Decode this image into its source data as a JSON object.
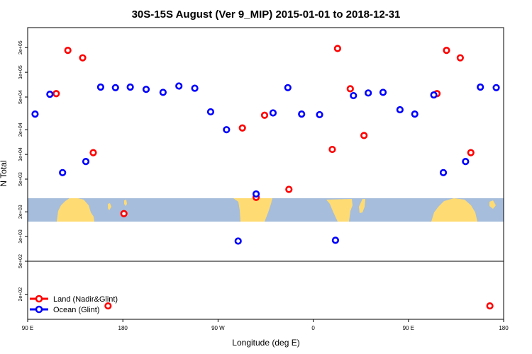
{
  "chart_data": {
    "type": "scatter",
    "title": "30S-15S August (Ver 9_MIP)   2015-01-01 to 2018-12-31",
    "xlabel": "Longitude (deg E)",
    "ylabel": "N Total",
    "xlim": [
      90,
      540
    ],
    "ylim": [
      100,
      350000
    ],
    "yscale": "log",
    "x_ticks": [
      {
        "value": 90,
        "label": "90 E"
      },
      {
        "value": 180,
        "label": "180"
      },
      {
        "value": 270,
        "label": "90 W"
      },
      {
        "value": 360,
        "label": "0"
      },
      {
        "value": 450,
        "label": "90 E"
      },
      {
        "value": 540,
        "label": "180"
      }
    ],
    "y_ticks": [
      {
        "value": 200,
        "label": "2e+02"
      },
      {
        "value": 500,
        "label": "5e+02"
      },
      {
        "value": 1000,
        "label": "1e+03"
      },
      {
        "value": 2000,
        "label": "2e+03"
      },
      {
        "value": 5000,
        "label": "5e+03"
      },
      {
        "value": 10000,
        "label": "1e+04"
      },
      {
        "value": 20000,
        "label": "2e+04"
      },
      {
        "value": 50000,
        "label": "5e+04"
      },
      {
        "value": 100000,
        "label": "1e+05"
      },
      {
        "value": 200000,
        "label": "2e+05"
      }
    ],
    "legend": "bottom-left",
    "series": [
      {
        "name": "Land (Nadir&Glint)",
        "color": "#ff0000",
        "points": [
          {
            "x": 117,
            "y": 55000
          },
          {
            "x": 128,
            "y": 185000
          },
          {
            "x": 142,
            "y": 150000
          },
          {
            "x": 152,
            "y": 10500
          },
          {
            "x": 181,
            "y": 1900
          },
          {
            "x": 293,
            "y": 21000
          },
          {
            "x": 306,
            "y": 3000
          },
          {
            "x": 314,
            "y": 30000
          },
          {
            "x": 337,
            "y": 3750
          },
          {
            "x": 378,
            "y": 11500
          },
          {
            "x": 383,
            "y": 195000
          },
          {
            "x": 395,
            "y": 63000
          },
          {
            "x": 408,
            "y": 17000
          },
          {
            "x": 477,
            "y": 55000
          },
          {
            "x": 486,
            "y": 185000
          },
          {
            "x": 499,
            "y": 150000
          },
          {
            "x": 509,
            "y": 10500
          },
          {
            "x": 166,
            "y": 145
          },
          {
            "x": 527,
            "y": 145
          }
        ]
      },
      {
        "name": "Ocean (Glint)",
        "color": "#0000ff",
        "points": [
          {
            "x": 97,
            "y": 31000
          },
          {
            "x": 111,
            "y": 54000
          },
          {
            "x": 123,
            "y": 6000
          },
          {
            "x": 145,
            "y": 8200
          },
          {
            "x": 159,
            "y": 66000
          },
          {
            "x": 173,
            "y": 65000
          },
          {
            "x": 187,
            "y": 66000
          },
          {
            "x": 202,
            "y": 62000
          },
          {
            "x": 218,
            "y": 57000
          },
          {
            "x": 233,
            "y": 68000
          },
          {
            "x": 248,
            "y": 64000
          },
          {
            "x": 263,
            "y": 33000
          },
          {
            "x": 278,
            "y": 20000
          },
          {
            "x": 289,
            "y": 880
          },
          {
            "x": 306,
            "y": 3300
          },
          {
            "x": 322,
            "y": 32000
          },
          {
            "x": 336,
            "y": 65000
          },
          {
            "x": 349,
            "y": 31000
          },
          {
            "x": 366,
            "y": 30500
          },
          {
            "x": 381,
            "y": 900
          },
          {
            "x": 398,
            "y": 52000
          },
          {
            "x": 412,
            "y": 56000
          },
          {
            "x": 426,
            "y": 57000
          },
          {
            "x": 442,
            "y": 35000
          },
          {
            "x": 456,
            "y": 31000
          },
          {
            "x": 474,
            "y": 53000
          },
          {
            "x": 483,
            "y": 6000
          },
          {
            "x": 504,
            "y": 8200
          },
          {
            "x": 518,
            "y": 66000
          },
          {
            "x": 533,
            "y": 65000
          }
        ]
      }
    ]
  }
}
